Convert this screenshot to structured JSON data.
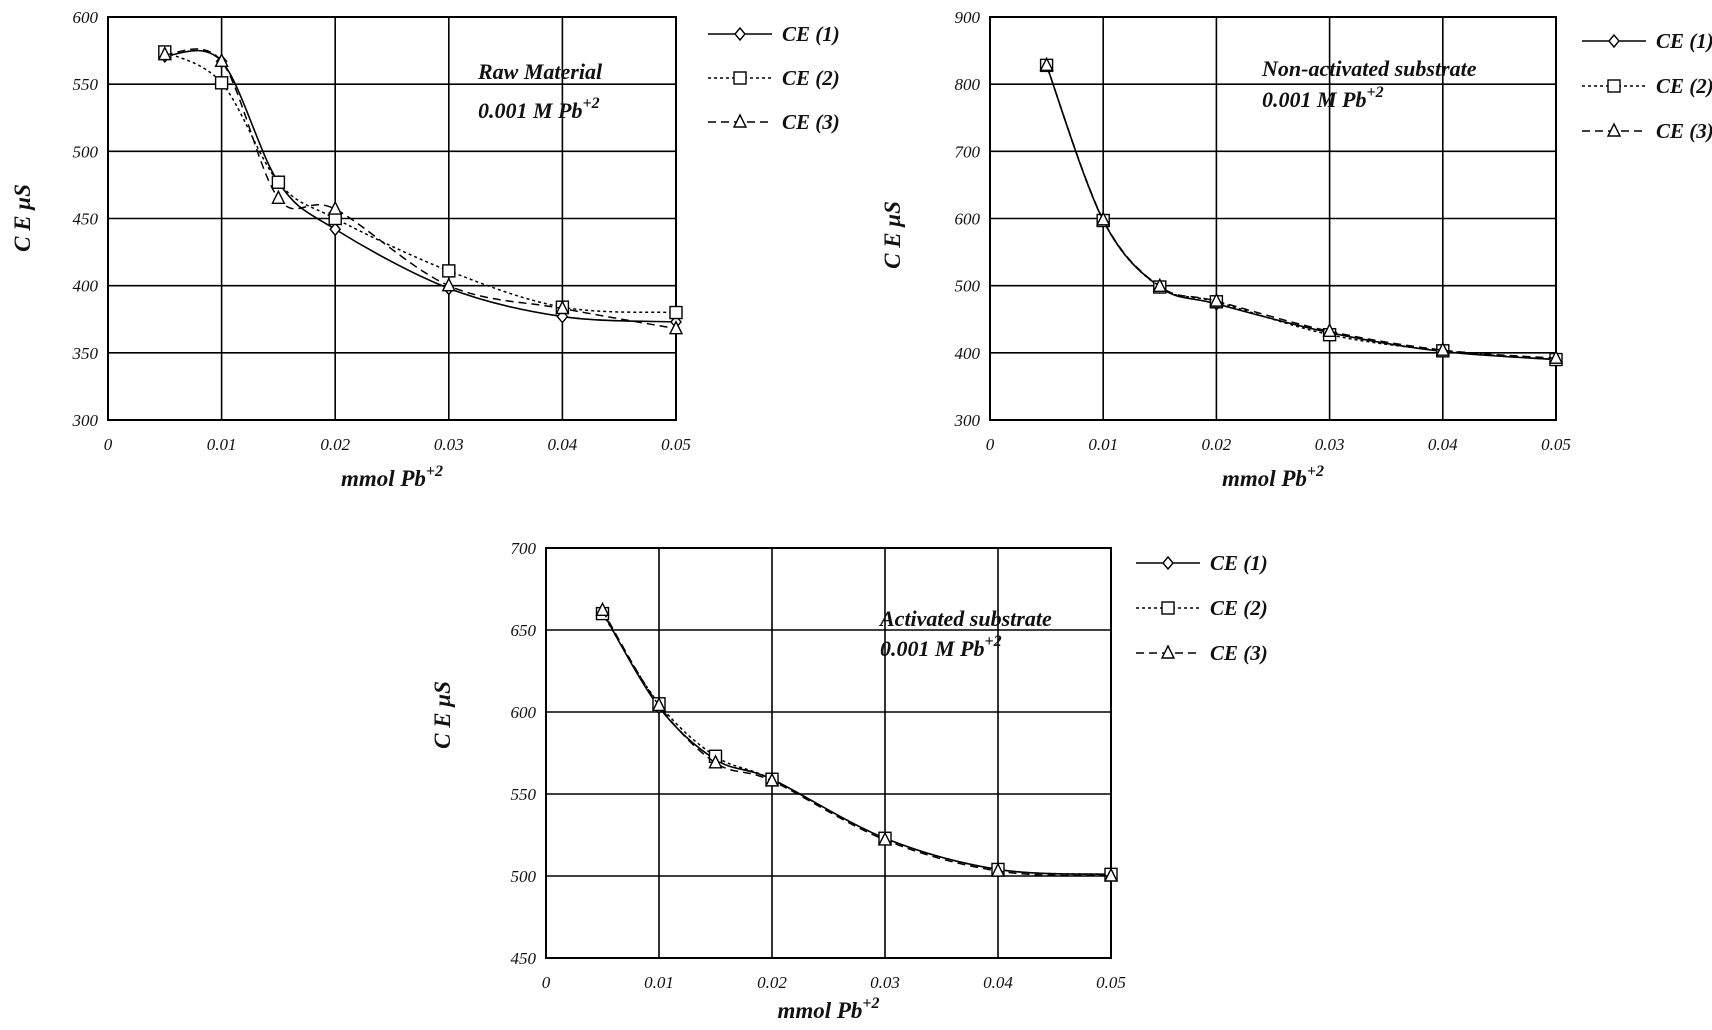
{
  "chart_data": [
    {
      "type": "line",
      "xlabel": "mmol Pb",
      "xlabel_sup": "+2",
      "ylabel": "C E  μS",
      "xlim": [
        0,
        0.05
      ],
      "ylim": [
        300,
        600
      ],
      "xticks": [
        "0",
        "0.01",
        "0.02",
        "0.03",
        "0.04",
        "0.05"
      ],
      "yticks": [
        "300",
        "350",
        "400",
        "450",
        "500",
        "550",
        "600"
      ],
      "grid": true,
      "legend_position": "right",
      "annotation": [
        "Raw Material",
        "0.001 M  Pb"
      ],
      "annotation_sup": "+2",
      "series": [
        {
          "name": "CE (1)",
          "marker": "diamond",
          "line": "solid",
          "x": [
            0.005,
            0.01,
            0.015,
            0.02,
            0.03,
            0.04,
            0.05
          ],
          "y": [
            571,
            567,
            477,
            442,
            398,
            377,
            373
          ]
        },
        {
          "name": "CE (2)",
          "marker": "square",
          "line": "dotted",
          "x": [
            0.005,
            0.01,
            0.015,
            0.02,
            0.03,
            0.04,
            0.05
          ],
          "y": [
            574,
            551,
            477,
            450,
            411,
            384,
            380
          ]
        },
        {
          "name": "CE (3)",
          "marker": "triangle",
          "line": "dashed",
          "x": [
            0.005,
            0.01,
            0.015,
            0.02,
            0.03,
            0.04,
            0.05
          ],
          "y": [
            572,
            567,
            465,
            457,
            400,
            383,
            368
          ]
        }
      ]
    },
    {
      "type": "line",
      "xlabel": "mmol Pb",
      "xlabel_sup": "+2",
      "ylabel": "C E  μS",
      "xlim": [
        0,
        0.05
      ],
      "ylim": [
        300,
        900
      ],
      "xticks": [
        "0",
        "0.01",
        "0.02",
        "0.03",
        "0.04",
        "0.05"
      ],
      "yticks": [
        "300",
        "400",
        "500",
        "600",
        "700",
        "800",
        "900"
      ],
      "grid": true,
      "legend_position": "right",
      "annotation": [
        "Non-activated substrate",
        "0.001 M Pb"
      ],
      "annotation_sup": "+2",
      "series": [
        {
          "name": "CE (1)",
          "marker": "diamond",
          "line": "solid",
          "x": [
            0.005,
            0.01,
            0.015,
            0.02,
            0.03,
            0.04,
            0.05
          ],
          "y": [
            828,
            597,
            498,
            473,
            430,
            402,
            390
          ]
        },
        {
          "name": "CE (2)",
          "marker": "square",
          "line": "dotted",
          "x": [
            0.005,
            0.01,
            0.015,
            0.02,
            0.03,
            0.04,
            0.05
          ],
          "y": [
            828,
            597,
            498,
            476,
            427,
            403,
            390
          ]
        },
        {
          "name": "CE (3)",
          "marker": "triangle",
          "line": "dashed",
          "x": [
            0.005,
            0.01,
            0.015,
            0.02,
            0.03,
            0.04,
            0.05
          ],
          "y": [
            828,
            598,
            499,
            477,
            432,
            404,
            392
          ]
        }
      ]
    },
    {
      "type": "line",
      "xlabel": "mmol Pb",
      "xlabel_sup": "+2",
      "ylabel": "C E  μS",
      "xlim": [
        0,
        0.05
      ],
      "ylim": [
        450,
        700
      ],
      "xticks": [
        "0",
        "0.01",
        "0.02",
        "0.03",
        "0.04",
        "0.05"
      ],
      "yticks": [
        "450",
        "500",
        "550",
        "600",
        "650",
        "700"
      ],
      "grid": true,
      "legend_position": "right",
      "annotation": [
        "Activated substrate",
        "0.001 M Pb"
      ],
      "annotation_sup": "+2",
      "series": [
        {
          "name": "CE (1)",
          "marker": "diamond",
          "line": "solid",
          "x": [
            0.005,
            0.01,
            0.015,
            0.02,
            0.03,
            0.04,
            0.05
          ],
          "y": [
            661,
            603,
            571,
            559,
            523,
            504,
            501
          ]
        },
        {
          "name": "CE (2)",
          "marker": "square",
          "line": "dotted",
          "x": [
            0.005,
            0.01,
            0.015,
            0.02,
            0.03,
            0.04,
            0.05
          ],
          "y": [
            660,
            605,
            573,
            559,
            523,
            504,
            501
          ]
        },
        {
          "name": "CE (3)",
          "marker": "triangle",
          "line": "dashed",
          "x": [
            0.005,
            0.01,
            0.015,
            0.02,
            0.03,
            0.04,
            0.05
          ],
          "y": [
            662,
            604,
            569,
            558,
            522,
            503,
            500
          ]
        }
      ]
    }
  ],
  "colors": {
    "ink": "#111111",
    "grid": "#000000",
    "background": "#ffffff"
  }
}
